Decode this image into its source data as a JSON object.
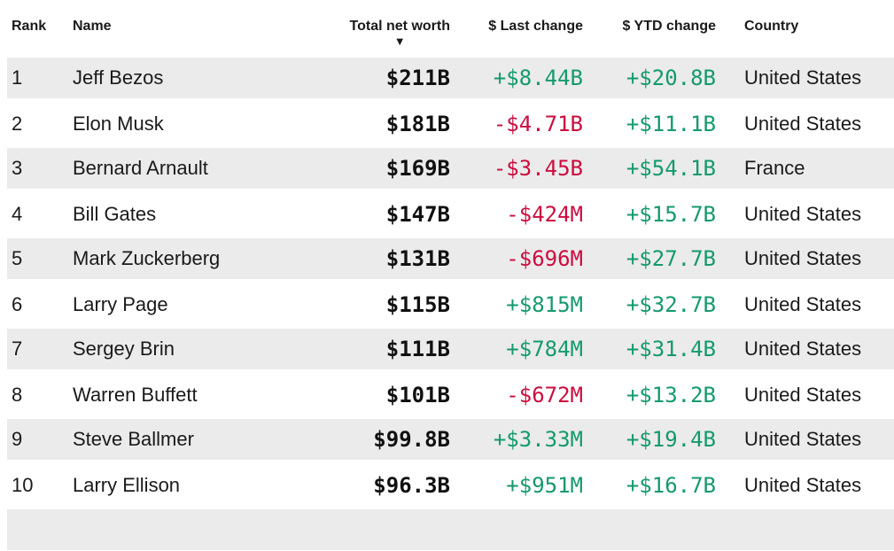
{
  "header": {
    "columns": [
      {
        "label": "Rank"
      },
      {
        "label": "Name"
      },
      {
        "label": "Total net worth",
        "sorted": "desc"
      },
      {
        "label": "$ Last change"
      },
      {
        "label": "$ YTD change"
      },
      {
        "label": "Country"
      }
    ],
    "sort_icon": "▼"
  },
  "colors": {
    "positive": "#149a6b",
    "negative": "#cc0c3f",
    "row_stripe": "#ebebeb",
    "text": "#1a1a1a"
  },
  "rows": [
    {
      "rank": "1",
      "name": "Jeff Bezos",
      "net_worth": "$211B",
      "last_change": "+$8.44B",
      "ytd_change": "+$20.8B",
      "country": "United States"
    },
    {
      "rank": "2",
      "name": "Elon Musk",
      "net_worth": "$181B",
      "last_change": "-$4.71B",
      "ytd_change": "+$11.1B",
      "country": "United States"
    },
    {
      "rank": "3",
      "name": "Bernard Arnault",
      "net_worth": "$169B",
      "last_change": "-$3.45B",
      "ytd_change": "+$54.1B",
      "country": "France"
    },
    {
      "rank": "4",
      "name": "Bill Gates",
      "net_worth": "$147B",
      "last_change": "-$424M",
      "ytd_change": "+$15.7B",
      "country": "United States"
    },
    {
      "rank": "5",
      "name": "Mark Zuckerberg",
      "net_worth": "$131B",
      "last_change": "-$696M",
      "ytd_change": "+$27.7B",
      "country": "United States"
    },
    {
      "rank": "6",
      "name": "Larry Page",
      "net_worth": "$115B",
      "last_change": "+$815M",
      "ytd_change": "+$32.7B",
      "country": "United States"
    },
    {
      "rank": "7",
      "name": "Sergey Brin",
      "net_worth": "$111B",
      "last_change": "+$784M",
      "ytd_change": "+$31.4B",
      "country": "United States"
    },
    {
      "rank": "8",
      "name": "Warren Buffett",
      "net_worth": "$101B",
      "last_change": "-$672M",
      "ytd_change": "+$13.2B",
      "country": "United States"
    },
    {
      "rank": "9",
      "name": "Steve Ballmer",
      "net_worth": "$99.8B",
      "last_change": "+$3.33M",
      "ytd_change": "+$19.4B",
      "country": "United States"
    },
    {
      "rank": "10",
      "name": "Larry Ellison",
      "net_worth": "$96.3B",
      "last_change": "+$951M",
      "ytd_change": "+$16.7B",
      "country": "United States"
    }
  ]
}
